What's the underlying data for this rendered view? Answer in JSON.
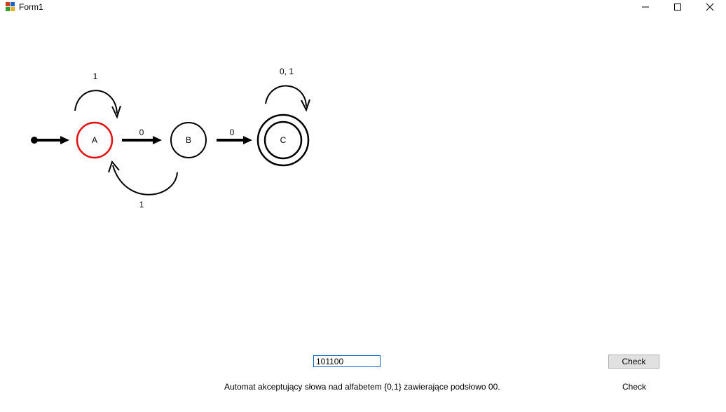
{
  "window": {
    "title": "Form1"
  },
  "diagram": {
    "states": [
      {
        "id": "A",
        "label": "A",
        "start": true,
        "accepting": false,
        "highlighted": true
      },
      {
        "id": "B",
        "label": "B",
        "start": false,
        "accepting": false,
        "highlighted": false
      },
      {
        "id": "C",
        "label": "C",
        "start": false,
        "accepting": true,
        "highlighted": false
      }
    ],
    "transitions": [
      {
        "from": "A",
        "to": "A",
        "label": "1"
      },
      {
        "from": "A",
        "to": "B",
        "label": "0"
      },
      {
        "from": "B",
        "to": "A",
        "label": "1"
      },
      {
        "from": "B",
        "to": "C",
        "label": "0"
      },
      {
        "from": "C",
        "to": "C",
        "label": "0, 1"
      }
    ],
    "colors": {
      "highlight": "#e01010",
      "stroke": "#000000"
    }
  },
  "form": {
    "input_value": "101100",
    "check_label": "Check",
    "description": "Automat akceptujący słowa nad alfabetem {0,1} zawierające podsłowo 00.",
    "result": "Check"
  }
}
